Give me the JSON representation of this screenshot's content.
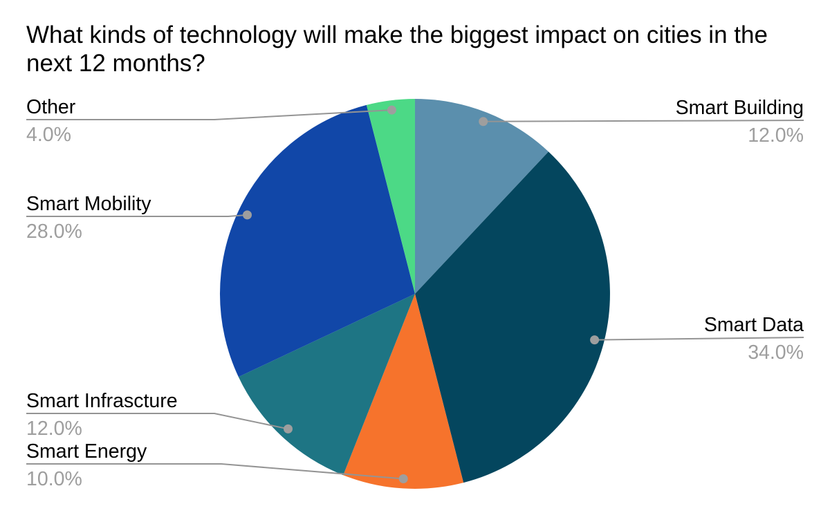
{
  "title": "What kinds of technology will make the biggest impact on cities in the next 12 months?",
  "chart_data": {
    "type": "pie",
    "title": "What kinds of technology will make the biggest impact on cities in the next 12 months?",
    "unit": "percent",
    "direction": "clockwise",
    "start_angle_deg": 0,
    "legend": "callout-labels",
    "background": "#FFFFFF",
    "title_color": "#000000",
    "label_text_color": "#000000",
    "pct_text_color": "#9E9E9E",
    "leader_line_color": "#949494",
    "callout_dot_color": "#9E9E9E",
    "slices": [
      {
        "label": "Smart Building",
        "value": 12.0,
        "pct_label": "12.0%",
        "color": "#5B8FAD"
      },
      {
        "label": "Smart Data",
        "value": 34.0,
        "pct_label": "34.0%",
        "color": "#04465E"
      },
      {
        "label": "Smart Energy",
        "value": 10.0,
        "pct_label": "10.0%",
        "color": "#F6732C"
      },
      {
        "label": "Smart Infrascture",
        "value": 12.0,
        "pct_label": "12.0%",
        "color": "#1E7584"
      },
      {
        "label": "Smart Mobility",
        "value": 28.0,
        "pct_label": "28.0%",
        "color": "#1147A8"
      },
      {
        "label": "Other",
        "value": 4.0,
        "pct_label": "4.0%",
        "color": "#4CD986"
      }
    ]
  }
}
